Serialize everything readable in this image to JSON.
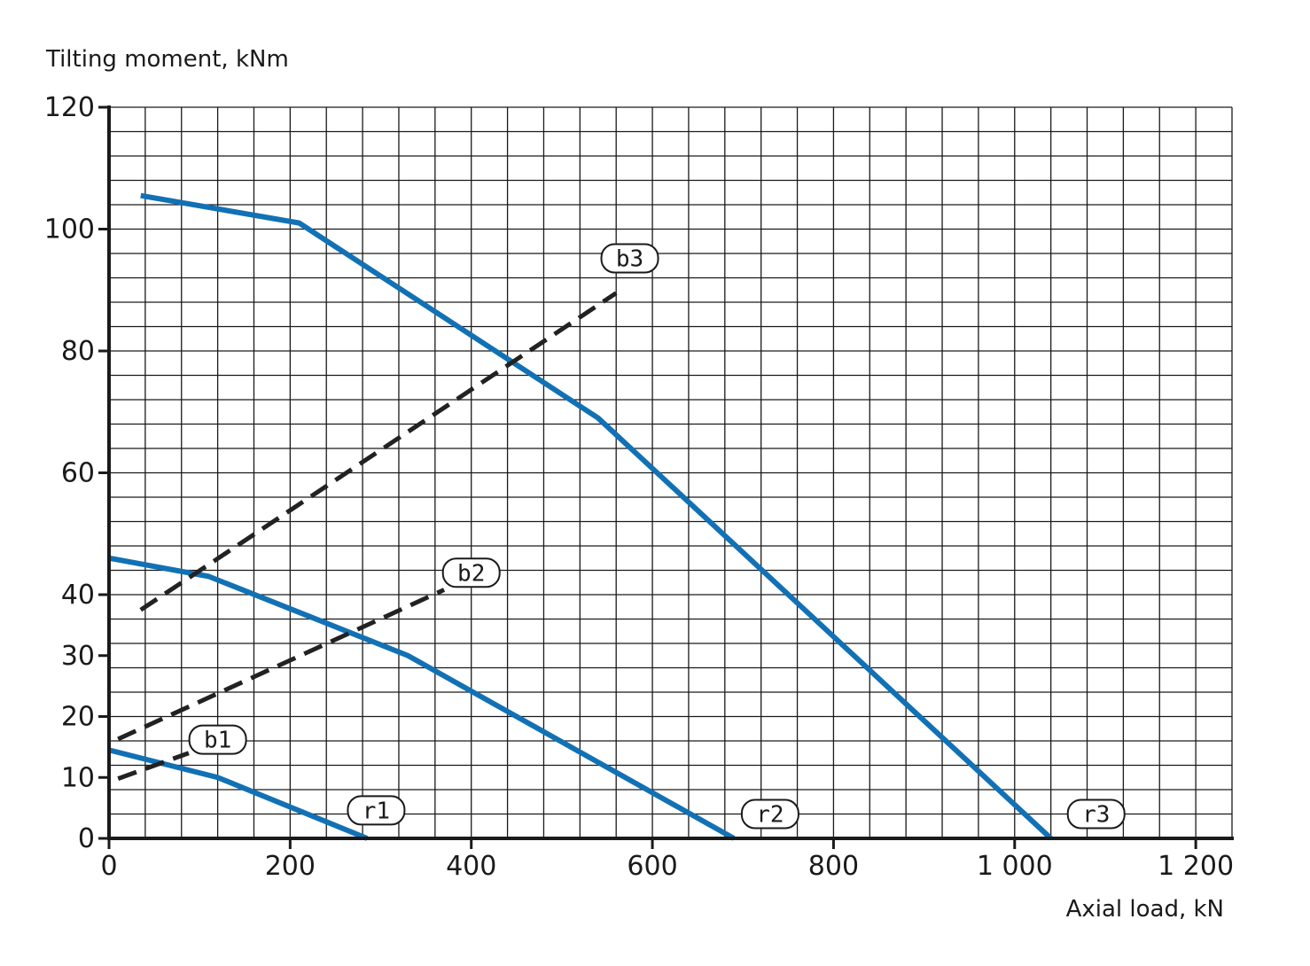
{
  "chart_data": {
    "type": "line",
    "xlabel": "Axial load, kN",
    "ylabel": "Tilting moment, kNm",
    "xlim": [
      0,
      1240
    ],
    "ylim": [
      0,
      120
    ],
    "x_ticks": [
      {
        "value": 0,
        "label": "0"
      },
      {
        "value": 200,
        "label": "200"
      },
      {
        "value": 400,
        "label": "400"
      },
      {
        "value": 600,
        "label": "600"
      },
      {
        "value": 800,
        "label": "800"
      },
      {
        "value": 1000,
        "label": "1 000"
      },
      {
        "value": 1200,
        "label": "1 200"
      }
    ],
    "y_ticks": [
      {
        "value": 0,
        "label": "0"
      },
      {
        "value": 10,
        "label": "10"
      },
      {
        "value": 20,
        "label": "20"
      },
      {
        "value": 30,
        "label": "30"
      },
      {
        "value": 40,
        "label": "40"
      },
      {
        "value": 60,
        "label": "60"
      },
      {
        "value": 80,
        "label": "80"
      },
      {
        "value": 100,
        "label": "100"
      },
      {
        "value": 120,
        "label": "120"
      }
    ],
    "grid": true,
    "series": [
      {
        "name": "r1",
        "style": "solid",
        "color": "#1271b5",
        "points": [
          [
            0,
            14.5
          ],
          [
            120,
            10
          ],
          [
            285,
            0
          ]
        ],
        "label_at": [
          295,
          4.6
        ]
      },
      {
        "name": "r2",
        "style": "solid",
        "color": "#1271b5",
        "points": [
          [
            0,
            46
          ],
          [
            110,
            43
          ],
          [
            330,
            30
          ],
          [
            690,
            0
          ]
        ],
        "label_at": [
          730,
          4.0
        ]
      },
      {
        "name": "r3",
        "style": "solid",
        "color": "#1271b5",
        "points": [
          [
            35,
            105.5
          ],
          [
            210,
            101
          ],
          [
            540,
            69
          ],
          [
            1040,
            0
          ]
        ],
        "label_at": [
          1090,
          4.0
        ]
      },
      {
        "name": "b1",
        "style": "dashed",
        "color": "#222222",
        "points": [
          [
            10,
            9.8
          ],
          [
            88,
            14
          ]
        ],
        "label_at": [
          120,
          16.2
        ]
      },
      {
        "name": "b2",
        "style": "dashed",
        "color": "#222222",
        "points": [
          [
            10,
            16.3
          ],
          [
            370,
            40.8
          ]
        ],
        "label_at": [
          400,
          43.6
        ]
      },
      {
        "name": "b3",
        "style": "dashed",
        "color": "#222222",
        "points": [
          [
            35,
            37.5
          ],
          [
            560,
            89.5
          ]
        ],
        "label_at": [
          575,
          95.2
        ]
      }
    ]
  }
}
